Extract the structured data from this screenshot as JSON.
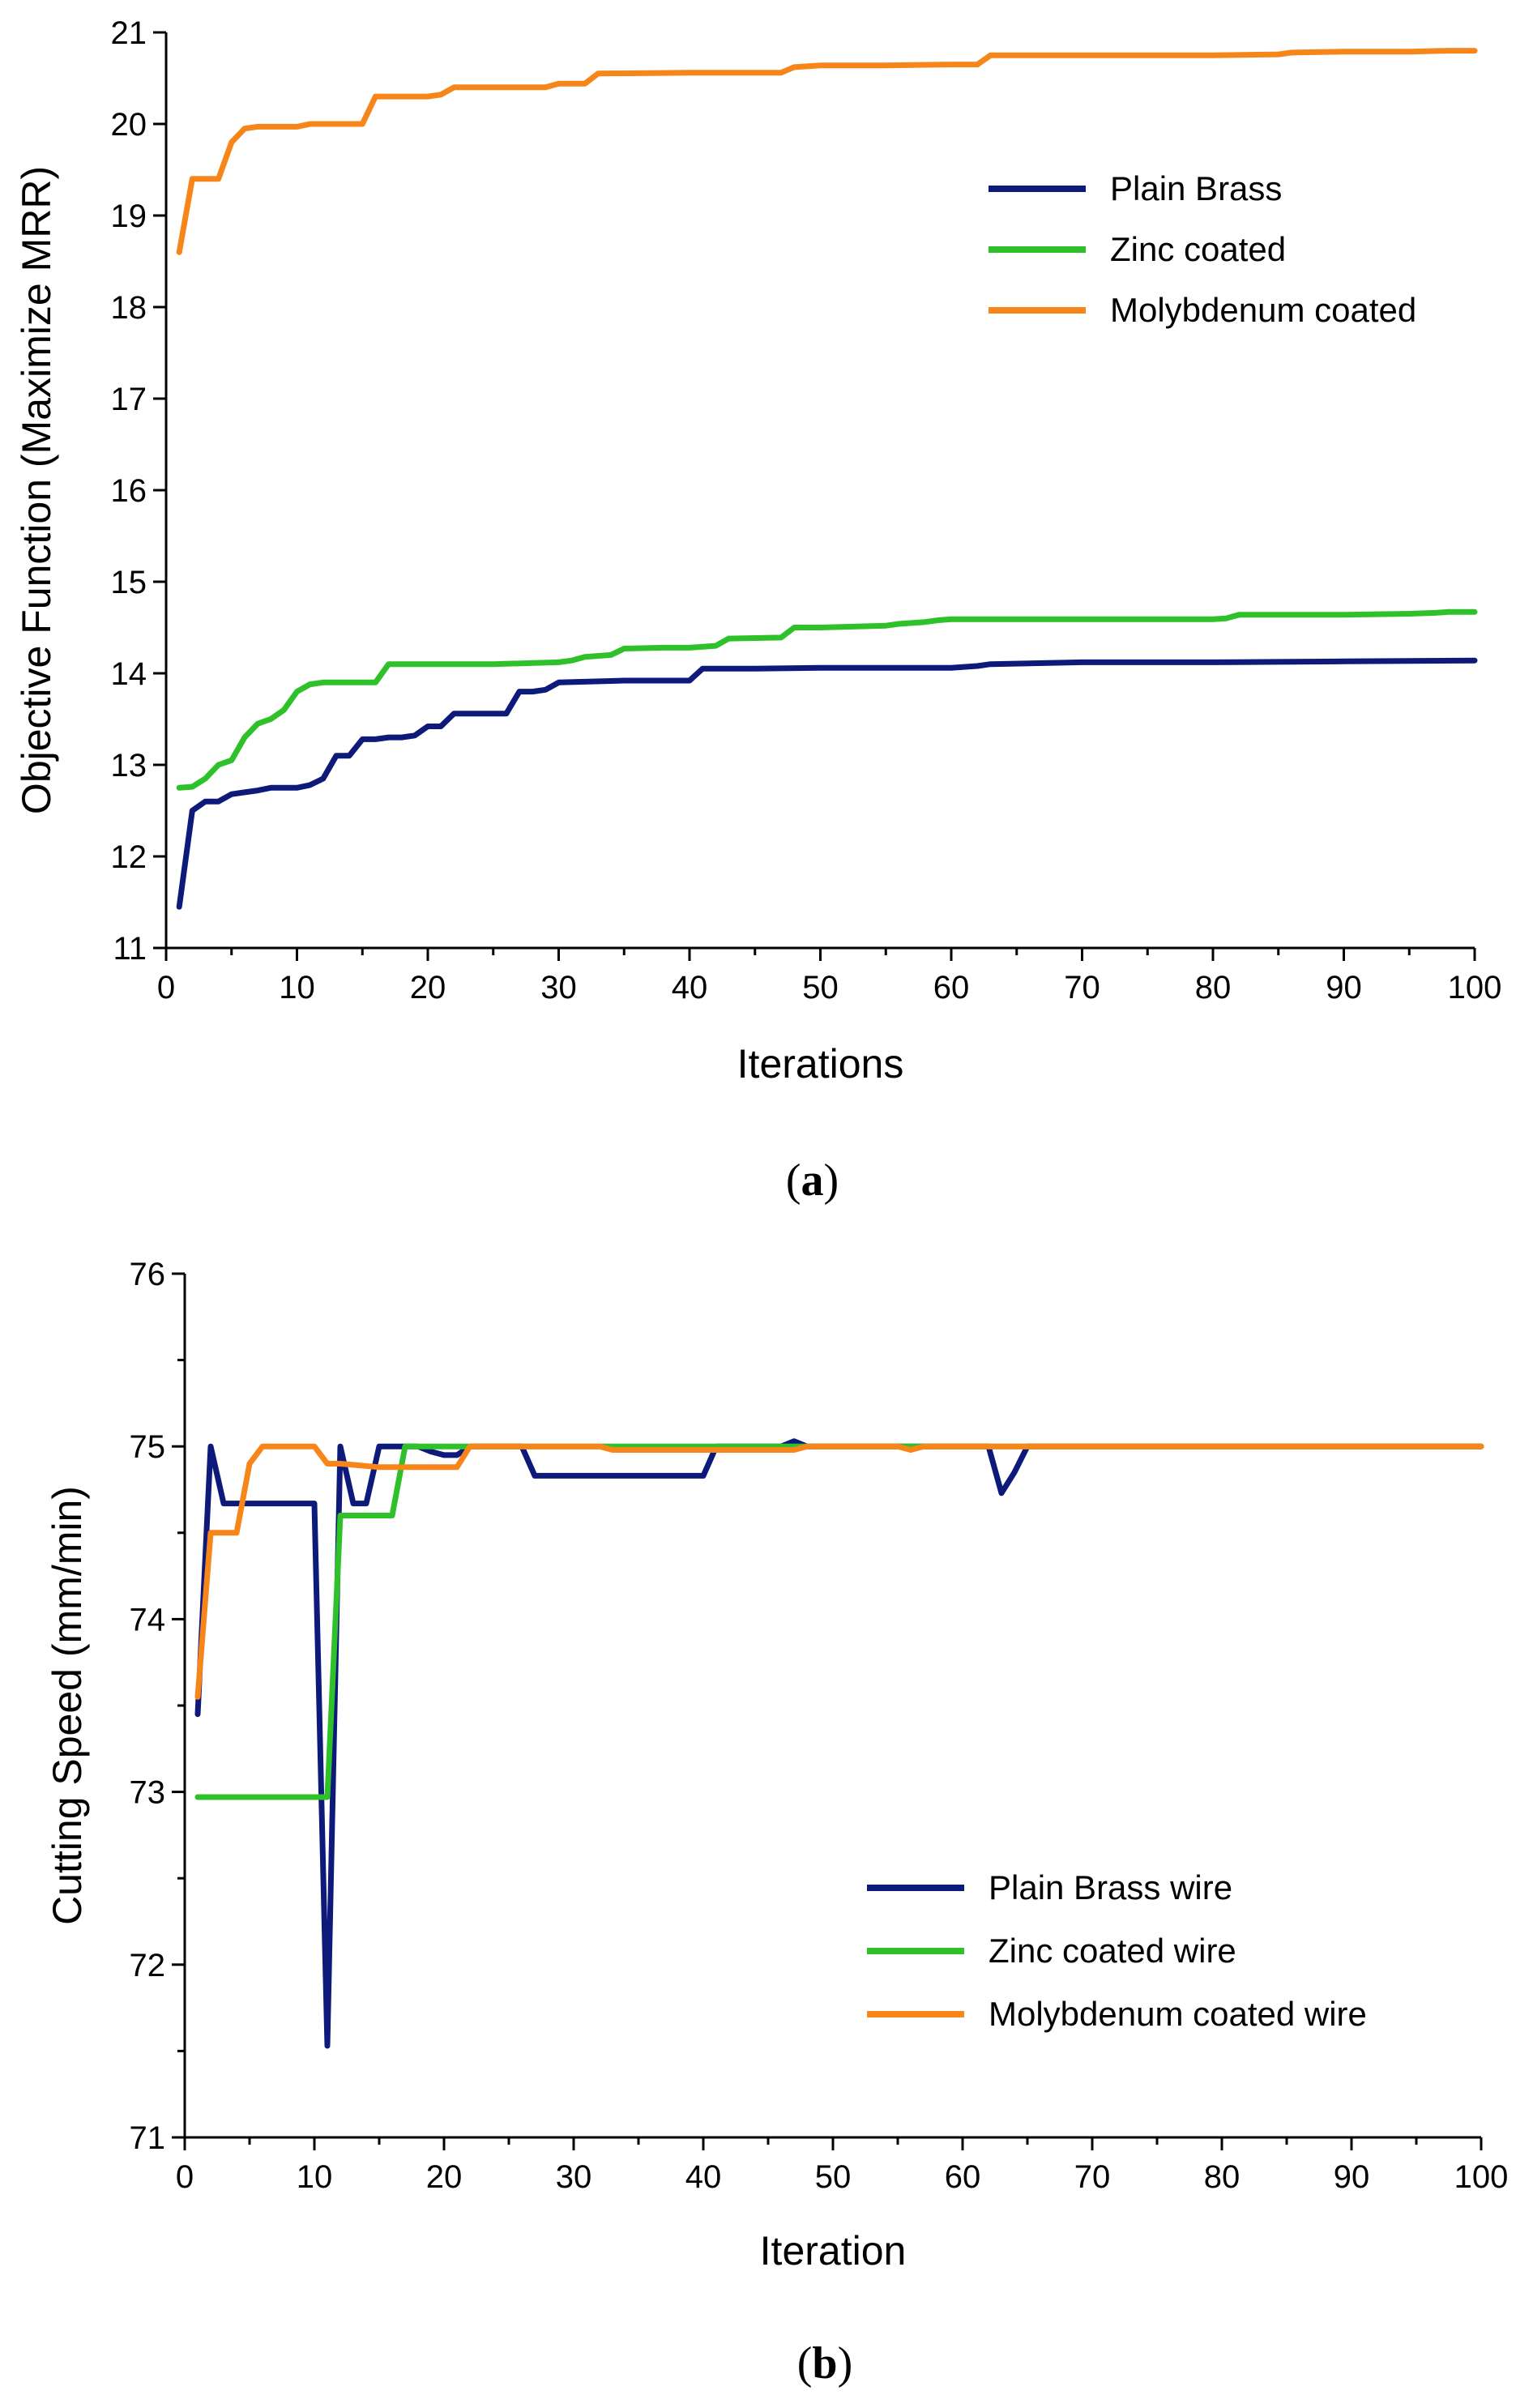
{
  "chart_data": [
    {
      "type": "line",
      "caption_open": "(",
      "caption_letter": "a",
      "caption_close": ")",
      "title": "",
      "xlabel": "Iterations",
      "ylabel": "Objective Function (Maximize MRR)",
      "xlim": [
        0,
        100
      ],
      "ylim": [
        11,
        21
      ],
      "xticks": [
        0,
        10,
        20,
        30,
        40,
        50,
        60,
        70,
        80,
        90,
        100
      ],
      "yticks": [
        11,
        12,
        13,
        14,
        15,
        16,
        17,
        18,
        19,
        20,
        21
      ],
      "legend_position": "top-right",
      "series": [
        {
          "name": "Plain Brass",
          "color": "#0d1a7a",
          "points": [
            [
              1,
              11.45
            ],
            [
              2,
              12.5
            ],
            [
              3,
              12.6
            ],
            [
              4,
              12.6
            ],
            [
              5,
              12.68
            ],
            [
              6,
              12.7
            ],
            [
              7,
              12.72
            ],
            [
              8,
              12.75
            ],
            [
              9,
              12.75
            ],
            [
              10,
              12.75
            ],
            [
              11,
              12.78
            ],
            [
              12,
              12.85
            ],
            [
              13,
              13.1
            ],
            [
              14,
              13.1
            ],
            [
              15,
              13.28
            ],
            [
              16,
              13.28
            ],
            [
              17,
              13.3
            ],
            [
              18,
              13.3
            ],
            [
              19,
              13.32
            ],
            [
              20,
              13.42
            ],
            [
              21,
              13.42
            ],
            [
              22,
              13.56
            ],
            [
              23,
              13.56
            ],
            [
              24,
              13.56
            ],
            [
              25,
              13.56
            ],
            [
              26,
              13.56
            ],
            [
              27,
              13.8
            ],
            [
              28,
              13.8
            ],
            [
              29,
              13.82
            ],
            [
              30,
              13.9
            ],
            [
              35,
              13.92
            ],
            [
              40,
              13.92
            ],
            [
              41,
              14.05
            ],
            [
              45,
              14.05
            ],
            [
              50,
              14.06
            ],
            [
              55,
              14.06
            ],
            [
              60,
              14.06
            ],
            [
              62,
              14.08
            ],
            [
              63,
              14.1
            ],
            [
              70,
              14.12
            ],
            [
              80,
              14.12
            ],
            [
              90,
              14.13
            ],
            [
              100,
              14.14
            ]
          ]
        },
        {
          "name": "Zinc coated",
          "color": "#2fc12a",
          "points": [
            [
              1,
              12.75
            ],
            [
              2,
              12.76
            ],
            [
              3,
              12.85
            ],
            [
              4,
              13.0
            ],
            [
              5,
              13.05
            ],
            [
              6,
              13.3
            ],
            [
              7,
              13.45
            ],
            [
              8,
              13.5
            ],
            [
              9,
              13.6
            ],
            [
              10,
              13.8
            ],
            [
              11,
              13.88
            ],
            [
              12,
              13.9
            ],
            [
              13,
              13.9
            ],
            [
              14,
              13.9
            ],
            [
              15,
              13.9
            ],
            [
              16,
              13.9
            ],
            [
              17,
              14.1
            ],
            [
              18,
              14.1
            ],
            [
              20,
              14.1
            ],
            [
              25,
              14.1
            ],
            [
              30,
              14.12
            ],
            [
              31,
              14.14
            ],
            [
              32,
              14.18
            ],
            [
              34,
              14.2
            ],
            [
              35,
              14.27
            ],
            [
              38,
              14.28
            ],
            [
              40,
              14.28
            ],
            [
              42,
              14.3
            ],
            [
              43,
              14.38
            ],
            [
              47,
              14.39
            ],
            [
              48,
              14.5
            ],
            [
              50,
              14.5
            ],
            [
              55,
              14.52
            ],
            [
              56,
              14.54
            ],
            [
              58,
              14.56
            ],
            [
              59,
              14.58
            ],
            [
              60,
              14.59
            ],
            [
              70,
              14.59
            ],
            [
              80,
              14.59
            ],
            [
              81,
              14.6
            ],
            [
              82,
              14.64
            ],
            [
              90,
              14.64
            ],
            [
              95,
              14.65
            ],
            [
              97,
              14.66
            ],
            [
              98,
              14.67
            ],
            [
              100,
              14.67
            ]
          ]
        },
        {
          "name": "Molybdenum coated",
          "color": "#f7861a",
          "points": [
            [
              1,
              18.6
            ],
            [
              2,
              19.4
            ],
            [
              3,
              19.4
            ],
            [
              4,
              19.4
            ],
            [
              5,
              19.8
            ],
            [
              6,
              19.95
            ],
            [
              7,
              19.97
            ],
            [
              8,
              19.97
            ],
            [
              9,
              19.97
            ],
            [
              10,
              19.97
            ],
            [
              11,
              20.0
            ],
            [
              12,
              20.0
            ],
            [
              13,
              20.0
            ],
            [
              14,
              20.0
            ],
            [
              15,
              20.0
            ],
            [
              16,
              20.3
            ],
            [
              17,
              20.3
            ],
            [
              20,
              20.3
            ],
            [
              21,
              20.32
            ],
            [
              22,
              20.4
            ],
            [
              25,
              20.4
            ],
            [
              29,
              20.4
            ],
            [
              30,
              20.44
            ],
            [
              32,
              20.44
            ],
            [
              33,
              20.55
            ],
            [
              40,
              20.56
            ],
            [
              47,
              20.56
            ],
            [
              48,
              20.62
            ],
            [
              50,
              20.64
            ],
            [
              55,
              20.64
            ],
            [
              60,
              20.65
            ],
            [
              62,
              20.65
            ],
            [
              63,
              20.75
            ],
            [
              70,
              20.75
            ],
            [
              80,
              20.75
            ],
            [
              85,
              20.76
            ],
            [
              86,
              20.78
            ],
            [
              90,
              20.79
            ],
            [
              95,
              20.79
            ],
            [
              98,
              20.8
            ],
            [
              100,
              20.8
            ]
          ]
        }
      ]
    },
    {
      "type": "line",
      "caption_open": "(",
      "caption_letter": "b",
      "caption_close": ")",
      "title": "",
      "xlabel": "Iteration",
      "ylabel": "Cutting Speed (mm/min)",
      "xlim": [
        0,
        100
      ],
      "ylim": [
        71,
        76
      ],
      "xticks": [
        0,
        10,
        20,
        30,
        40,
        50,
        60,
        70,
        80,
        90,
        100
      ],
      "yticks": [
        71,
        72,
        73,
        74,
        75,
        76
      ],
      "legend_position": "bottom-right",
      "series": [
        {
          "name": "Plain Brass wire",
          "color": "#0d1a7a",
          "points": [
            [
              1,
              73.45
            ],
            [
              2,
              75.0
            ],
            [
              3,
              74.67
            ],
            [
              4,
              74.67
            ],
            [
              5,
              74.67
            ],
            [
              8,
              74.67
            ],
            [
              10,
              74.67
            ],
            [
              11,
              71.53
            ],
            [
              12,
              75.0
            ],
            [
              13,
              74.67
            ],
            [
              14,
              74.67
            ],
            [
              15,
              75.0
            ],
            [
              16,
              75.0
            ],
            [
              18,
              75.0
            ],
            [
              19,
              74.97
            ],
            [
              20,
              74.95
            ],
            [
              21,
              74.95
            ],
            [
              22,
              75.0
            ],
            [
              26,
              75.0
            ],
            [
              27,
              74.83
            ],
            [
              30,
              74.83
            ],
            [
              35,
              74.83
            ],
            [
              40,
              74.83
            ],
            [
              41,
              75.0
            ],
            [
              46,
              75.0
            ],
            [
              47,
              75.03
            ],
            [
              48,
              75.0
            ],
            [
              55,
              75.0
            ],
            [
              60,
              75.0
            ],
            [
              62,
              75.0
            ],
            [
              63,
              74.73
            ],
            [
              64,
              74.85
            ],
            [
              65,
              75.0
            ],
            [
              70,
              75.0
            ],
            [
              80,
              75.0
            ],
            [
              90,
              75.0
            ],
            [
              100,
              75.0
            ]
          ]
        },
        {
          "name": "Zinc coated wire",
          "color": "#2fc12a",
          "points": [
            [
              1,
              72.97
            ],
            [
              5,
              72.97
            ],
            [
              10,
              72.97
            ],
            [
              11,
              72.97
            ],
            [
              12,
              74.6
            ],
            [
              14,
              74.6
            ],
            [
              16,
              74.6
            ],
            [
              17,
              75.0
            ],
            [
              20,
              75.0
            ],
            [
              25,
              75.0
            ],
            [
              30,
              75.0
            ],
            [
              40,
              75.0
            ],
            [
              50,
              75.0
            ],
            [
              60,
              75.0
            ],
            [
              70,
              75.0
            ],
            [
              80,
              75.0
            ],
            [
              90,
              75.0
            ],
            [
              100,
              75.0
            ]
          ]
        },
        {
          "name": "Molybdenum coated wire",
          "color": "#f7861a",
          "points": [
            [
              1,
              73.55
            ],
            [
              2,
              74.5
            ],
            [
              3,
              74.5
            ],
            [
              4,
              74.5
            ],
            [
              5,
              74.9
            ],
            [
              6,
              75.0
            ],
            [
              7,
              75.0
            ],
            [
              8,
              75.0
            ],
            [
              9,
              75.0
            ],
            [
              10,
              75.0
            ],
            [
              11,
              74.9
            ],
            [
              12,
              74.9
            ],
            [
              15,
              74.88
            ],
            [
              20,
              74.88
            ],
            [
              21,
              74.88
            ],
            [
              22,
              75.0
            ],
            [
              25,
              75.0
            ],
            [
              30,
              75.0
            ],
            [
              32,
              75.0
            ],
            [
              33,
              74.98
            ],
            [
              40,
              74.98
            ],
            [
              47,
              74.98
            ],
            [
              48,
              75.0
            ],
            [
              55,
              75.0
            ],
            [
              56,
              74.98
            ],
            [
              57,
              75.0
            ],
            [
              60,
              75.0
            ],
            [
              70,
              75.0
            ],
            [
              80,
              75.0
            ],
            [
              90,
              75.0
            ],
            [
              100,
              75.0
            ]
          ]
        }
      ]
    }
  ]
}
